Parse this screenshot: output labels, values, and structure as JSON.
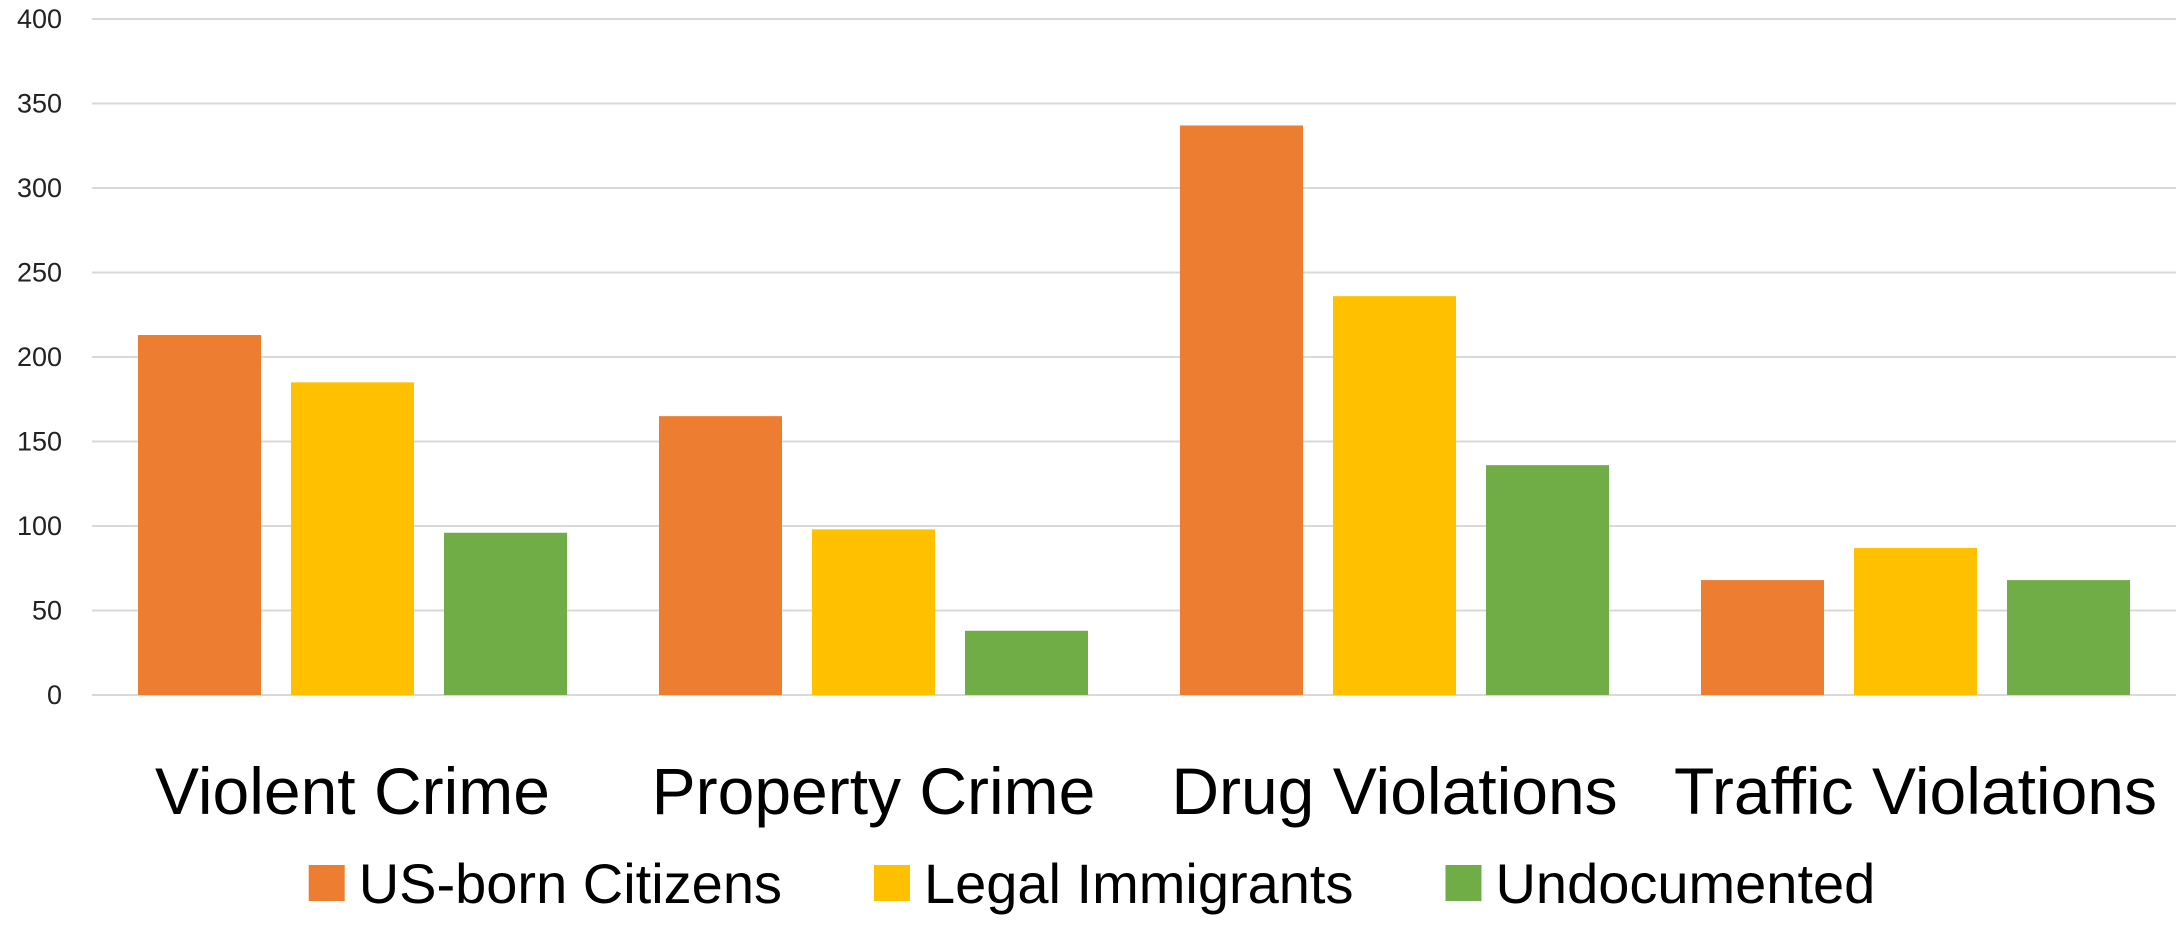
{
  "chart_data": {
    "type": "bar",
    "title": "",
    "xlabel": "",
    "ylabel": "",
    "categories": [
      "Violent Crime",
      "Property Crime",
      "Drug Violations",
      "Traffic Violations"
    ],
    "series": [
      {
        "name": "US-born Citizens",
        "color": "#ED7D31",
        "values": [
          213,
          165,
          337,
          68
        ]
      },
      {
        "name": "Legal Immigrants",
        "color": "#FFC000",
        "values": [
          185,
          98,
          236,
          87
        ]
      },
      {
        "name": "Undocumented",
        "color": "#70AD47",
        "values": [
          96,
          38,
          136,
          68
        ]
      }
    ],
    "ylim": [
      0,
      400
    ],
    "yticks": [
      0,
      50,
      100,
      150,
      200,
      250,
      300,
      350,
      400
    ],
    "grid": true,
    "legend": "bottom"
  }
}
